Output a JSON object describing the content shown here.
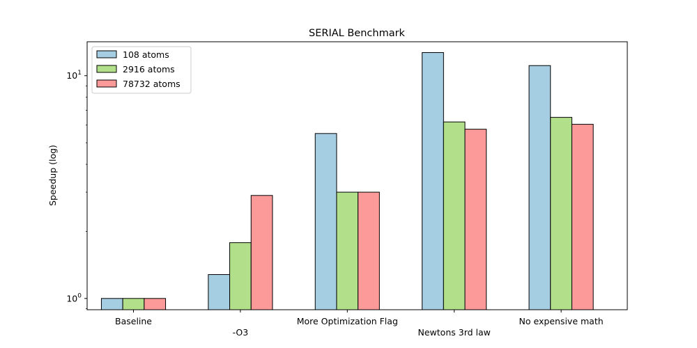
{
  "chart_data": {
    "type": "bar",
    "title": "SERIAL Benchmark",
    "xlabel": "",
    "ylabel": "Speedup (log)",
    "yscale": "log",
    "ylim": [
      0.89,
      14.2
    ],
    "yticks": [
      {
        "value": 1,
        "base": "10",
        "exp": "0"
      },
      {
        "value": 10,
        "base": "10",
        "exp": "1"
      }
    ],
    "categories": [
      "Baseline",
      "-O3",
      "More Optimization Flag",
      "Newtons 3rd law",
      "No expensive math"
    ],
    "category_label_rows": [
      0,
      1,
      0,
      1,
      0
    ],
    "series": [
      {
        "name": "108 atoms",
        "color": "#a6cee3",
        "values": [
          1.0,
          1.28,
          5.5,
          12.7,
          11.1
        ]
      },
      {
        "name": "2916 atoms",
        "color": "#b2df8a",
        "values": [
          1.0,
          1.78,
          3.0,
          6.2,
          6.5
        ]
      },
      {
        "name": "78732 atoms",
        "color": "#fb9a99",
        "values": [
          1.0,
          2.9,
          3.0,
          5.75,
          6.05
        ]
      }
    ],
    "legend_position": "top-left",
    "grid": false
  }
}
